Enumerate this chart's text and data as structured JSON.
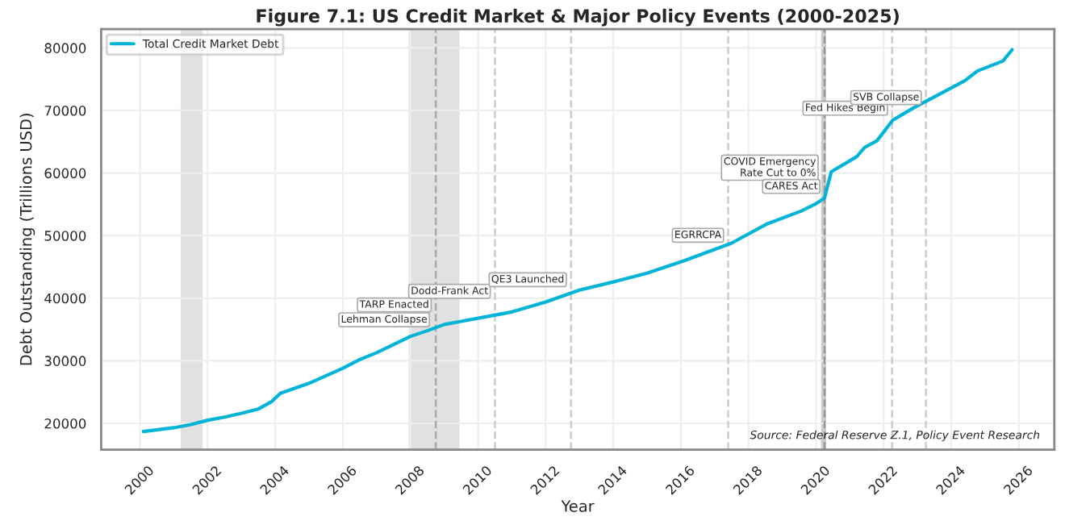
{
  "chart_data": {
    "type": "line",
    "title": "Figure 7.1: US Credit Market & Major Policy Events (2000-2025)",
    "xlabel": "Year",
    "ylabel": "Debt Outstanding (Trillions USD)",
    "x": [
      2000.1,
      2001.0,
      2001.5,
      2002.0,
      2002.5,
      2003.0,
      2003.5,
      2003.9,
      2004.15,
      2005.0,
      2006.0,
      2006.5,
      2007.0,
      2008.0,
      2008.5,
      2009.0,
      2009.5,
      2010.0,
      2011.0,
      2012.0,
      2013.0,
      2014.0,
      2015.0,
      2016.1,
      2017.5,
      2018.56,
      2019.55,
      2020.0,
      2020.25,
      2020.45,
      2021.2,
      2021.44,
      2021.8,
      2022.27,
      2022.88,
      2023.86,
      2024.4,
      2024.77,
      2025.53,
      2025.8
    ],
    "series": [
      {
        "name": "Total Credit Market Debt",
        "color": "#00b4d8",
        "values": [
          18700,
          19300,
          19800,
          20500,
          21000,
          21600,
          22300,
          23500,
          24800,
          26400,
          28800,
          30200,
          31300,
          33900,
          34800,
          35800,
          36300,
          36800,
          37800,
          39400,
          41300,
          42600,
          44000,
          46000,
          48800,
          51900,
          53900,
          55100,
          56000,
          60200,
          62600,
          64100,
          65150,
          68450,
          70400,
          73200,
          74750,
          76300,
          77900,
          79700
        ]
      }
    ],
    "xlim": [
      1998.85,
      2027.05
    ],
    "ylim": [
      15800,
      83000
    ],
    "xticks": [
      2000,
      2002,
      2004,
      2006,
      2008,
      2010,
      2012,
      2014,
      2016,
      2018,
      2020,
      2022,
      2024,
      2026
    ],
    "yticks": [
      20000,
      30000,
      40000,
      50000,
      60000,
      70000,
      80000
    ],
    "bands": [
      {
        "axis": "x",
        "from": 2001.2,
        "to": 2001.85,
        "color": "#d9d9d9"
      },
      {
        "axis": "x",
        "from": 2007.95,
        "to": 2009.45,
        "color": "#d9d9d9"
      },
      {
        "axis": "x",
        "from": 2020.15,
        "to": 2020.3,
        "color": "#bfbfbf"
      }
    ],
    "ref_lines": [
      {
        "axis": "x",
        "value": 2008.75,
        "color": "#aaaaaa",
        "line_style": "dashed"
      },
      {
        "axis": "x",
        "value": 2010.5,
        "color": "#cccccc",
        "line_style": "dashed"
      },
      {
        "axis": "x",
        "value": 2012.75,
        "color": "#cccccc",
        "line_style": "dashed"
      },
      {
        "axis": "x",
        "value": 2017.4,
        "color": "#cccccc",
        "line_style": "dashed"
      },
      {
        "axis": "x",
        "value": 2020.25,
        "color": "#999999",
        "line_style": "dashed"
      },
      {
        "axis": "x",
        "value": 2022.25,
        "color": "#cccccc",
        "line_style": "dashed"
      },
      {
        "axis": "x",
        "value": 2023.25,
        "color": "#cccccc",
        "line_style": "dashed"
      }
    ],
    "annotations": [
      {
        "text": "Lehman Collapse",
        "x": 2008.7,
        "y": 34700
      },
      {
        "text": "TARP Enacted",
        "x": 2008.75,
        "y": 36000
      },
      {
        "text": "Dodd-Frank Act",
        "x": 2010.5,
        "y": 37100
      },
      {
        "text": "QE3 Launched",
        "x": 2012.75,
        "y": 41100
      },
      {
        "text": "EGRRCPA",
        "x": 2017.4,
        "y": 48200
      },
      {
        "text": "COVID Emergency\nRate Cut to 0%",
        "x": 2020.2,
        "y": 58100
      },
      {
        "text": "CARES Act",
        "x": 2020.25,
        "y": 56000
      },
      {
        "text": "Fed Hikes Begin",
        "x": 2022.25,
        "y": 68500
      },
      {
        "text": "SVB Collapse",
        "x": 2023.25,
        "y": 70200
      },
      "Source: Federal Reserve Z.1, Policy Event Research"
    ],
    "grid": true,
    "legend": "top left",
    "marker": "none",
    "line_style": "solid"
  }
}
